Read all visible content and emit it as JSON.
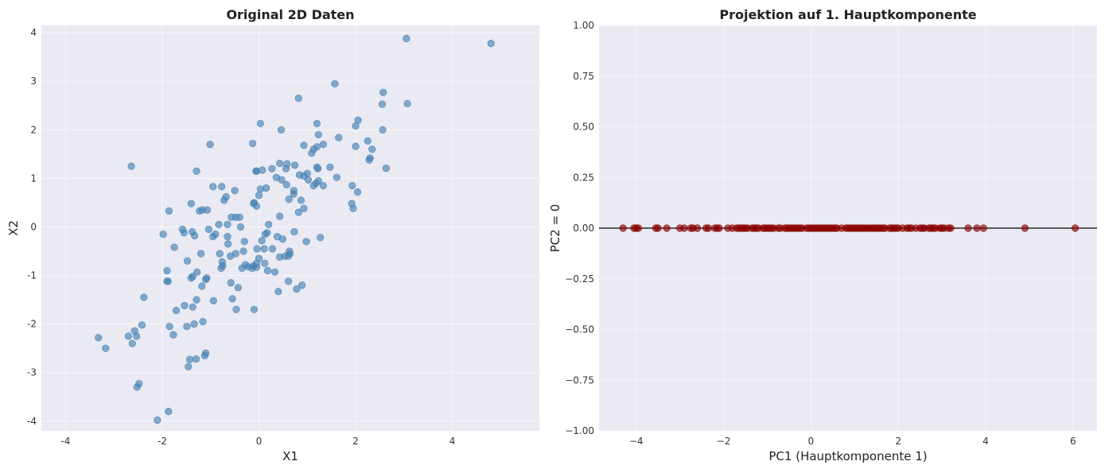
{
  "chart_data": [
    {
      "type": "scatter",
      "title": "Original 2D Daten",
      "xlabel": "X1",
      "ylabel": "X2",
      "xlim": [
        -4.5,
        5.8
      ],
      "ylim": [
        -4.2,
        4.15
      ],
      "xticks": [
        -4,
        -2,
        0,
        2,
        4
      ],
      "yticks": [
        -4,
        -3,
        -2,
        -1,
        0,
        1,
        2,
        3,
        4
      ],
      "grid": true,
      "marker_color": "#4682b4",
      "x": [
        3.05,
        4.8,
        1.57,
        2.57,
        3.07,
        0.82,
        2.55,
        2.05,
        2.0,
        0.03,
        1.2,
        2.56,
        0.46,
        1.23,
        1.65,
        -0.13,
        2.25,
        0.93,
        1.33,
        2.34,
        -1.01,
        1.2,
        1.13,
        -0.05,
        2.0,
        1.09,
        2.3,
        0.74,
        0.58,
        1.47,
        1.2,
        0.43,
        0.56,
        0.07,
        0.27,
        0.84,
        2.28,
        2.63,
        1.61,
        1.22,
        1.0,
        0.93,
        1.23,
        1.33,
        1.18,
        -1.29,
        -2.64,
        1.02,
        1.92,
        2.04,
        0.47,
        0.36,
        -0.06,
        0.57,
        0.03,
        1.13,
        1.95,
        -0.95,
        0.72,
        -0.72,
        -0.5,
        0.72,
        -1.4,
        -1.86,
        0.87,
        0.15,
        0.62,
        -0.77,
        0.0,
        -0.11,
        -1.23,
        0.93,
        -0.68,
        -0.48,
        1.93,
        -0.05,
        0.82,
        -1.17,
        -0.83,
        -0.57,
        0.43,
        -1.07,
        -0.4,
        -0.38,
        0.2,
        -1.98,
        -1.55,
        -0.95,
        -0.48,
        0.17,
        1.27,
        -1.58,
        -0.1,
        -0.65,
        0.06,
        0.98,
        0.73,
        0.38,
        0.13,
        0.0,
        -0.59,
        -0.32,
        0.11,
        0.49,
        0.61,
        -1.33,
        -1.04,
        -1.75,
        -0.04,
        0.28,
        -0.3,
        -0.81,
        -1.38,
        -1.2,
        -0.65,
        0.63,
        0.12,
        0.18,
        0.43,
        0.54,
        0.64,
        -0.64,
        -0.05,
        -1.48,
        -0.35,
        -0.28,
        -0.14,
        -0.11,
        -0.22,
        -1.28,
        -1.37,
        -1.4,
        -1.88,
        -1.08,
        0.33,
        -1.18,
        -1.9,
        -0.76,
        -0.05,
        -0.43,
        0.4,
        0.78,
        -0.58,
        0.89,
        0.61,
        -1.1,
        -0.94,
        -1.54,
        -1.71,
        -2.38,
        -0.47,
        -1.29,
        -0.1,
        -0.55,
        -1.37,
        -2.42,
        -2.57,
        -1.77,
        -1.34,
        -1.49,
        -1.16,
        -1.85,
        -1.1,
        -1.12,
        -1.3,
        -2.7,
        -3.32,
        -3.17,
        -2.53,
        -2.62,
        -1.43,
        -1.46,
        -2.48,
        -2.52,
        -1.87,
        -2.1,
        -1.9,
        -0.78,
        -0.75,
        -0.9
      ],
      "y": [
        3.88,
        3.78,
        2.95,
        2.77,
        2.54,
        2.65,
        2.53,
        2.2,
        2.08,
        2.13,
        2.13,
        2.0,
        2.0,
        1.9,
        1.84,
        1.72,
        1.77,
        1.68,
        1.7,
        1.6,
        1.7,
        1.65,
        1.6,
        1.15,
        1.66,
        1.52,
        1.42,
        1.27,
        1.3,
        1.23,
        1.23,
        1.31,
        1.2,
        1.17,
        1.2,
        1.07,
        1.38,
        1.21,
        1.02,
        1.2,
        1.1,
        1.05,
        0.95,
        0.85,
        0.9,
        1.15,
        1.25,
        0.97,
        0.48,
        0.72,
        0.97,
        1.02,
        1.15,
        0.87,
        0.78,
        0.85,
        0.38,
        0.83,
        0.75,
        0.55,
        0.75,
        0.68,
        0.48,
        0.33,
        0.55,
        0.8,
        0.57,
        0.83,
        0.65,
        0.48,
        0.33,
        0.38,
        0.62,
        0.2,
        0.85,
        0.43,
        0.3,
        0.35,
        0.05,
        0.2,
        0.22,
        0.35,
        0.2,
        0.0,
        0.05,
        -0.15,
        -0.12,
        -0.2,
        -0.55,
        -0.12,
        -0.22,
        -0.05,
        0.5,
        0.05,
        -0.28,
        -0.3,
        -0.1,
        -0.2,
        -0.15,
        -0.65,
        -0.6,
        -0.5,
        -0.45,
        -0.25,
        -0.6,
        -0.18,
        -0.05,
        -0.42,
        -0.45,
        -0.45,
        -0.3,
        -0.55,
        -0.1,
        -0.55,
        -0.2,
        -0.5,
        -0.75,
        -0.9,
        -0.62,
        -0.6,
        -0.55,
        -0.35,
        -0.75,
        -0.7,
        -0.85,
        -0.78,
        -0.85,
        -0.8,
        -0.82,
        -0.93,
        -1.02,
        -1.05,
        -1.12,
        -1.05,
        -0.93,
        -1.22,
        -0.9,
        -0.72,
        -0.83,
        -1.25,
        -1.33,
        -1.28,
        -1.15,
        -1.2,
        -1.12,
        -1.08,
        -1.52,
        -1.62,
        -1.72,
        -1.45,
        -1.7,
        -1.5,
        -1.7,
        -1.48,
        -1.65,
        -2.02,
        -2.14,
        -2.22,
        -2.0,
        -2.05,
        -1.95,
        -2.05,
        -2.6,
        -2.65,
        -2.72,
        -2.25,
        -2.28,
        -2.5,
        -2.25,
        -2.4,
        -2.73,
        -2.88,
        -3.23,
        -3.3,
        -3.8,
        -3.98,
        -1.12,
        -0.85,
        -0.8,
        -0.15
      ]
    },
    {
      "type": "scatter",
      "title": "Projektion auf 1. Hauptkomponente",
      "xlabel": "PC1 (Hauptkomponente 1)",
      "ylabel": "PC2 = 0",
      "xlim": [
        -4.85,
        6.55
      ],
      "ylim": [
        -1.0,
        1.0
      ],
      "xticks": [
        -4,
        -2,
        0,
        2,
        4,
        6
      ],
      "yticks": [
        -1.0,
        -0.75,
        -0.5,
        -0.25,
        0.0,
        0.25,
        0.5,
        0.75,
        1.0
      ],
      "ytick_labels": [
        "−1.00",
        "−0.75",
        "−0.50",
        "−0.25",
        "0.00",
        "0.25",
        "0.50",
        "0.75",
        "1.00"
      ],
      "xtick_labels": [
        "−4",
        "−2",
        "0",
        "2",
        "4",
        "6"
      ],
      "grid": true,
      "hline_y": 0,
      "marker_color": "#8b0000",
      "x": [
        -4.3,
        -4.05,
        -4.0,
        -3.95,
        -3.55,
        -3.5,
        -3.3,
        -3.0,
        -2.9,
        -2.75,
        -2.7,
        -2.6,
        -2.4,
        -2.35,
        -2.2,
        -2.15,
        -2.1,
        -1.9,
        -1.8,
        -1.7,
        -1.65,
        -1.6,
        -1.55,
        -1.5,
        -1.45,
        -1.35,
        -1.3,
        -1.25,
        -1.2,
        -1.1,
        -1.05,
        -1.0,
        -0.95,
        -0.9,
        -0.85,
        -0.75,
        -0.7,
        -0.6,
        -0.55,
        -0.5,
        -0.45,
        -0.4,
        -0.35,
        -0.3,
        -0.25,
        -0.2,
        -0.1,
        -0.05,
        0.0,
        0.05,
        0.1,
        0.15,
        0.2,
        0.25,
        0.3,
        0.35,
        0.4,
        0.45,
        0.5,
        0.55,
        0.6,
        0.7,
        0.8,
        0.85,
        0.9,
        0.95,
        1.0,
        1.05,
        1.1,
        1.15,
        1.2,
        1.25,
        1.3,
        1.35,
        1.4,
        1.45,
        1.5,
        1.55,
        1.6,
        1.65,
        1.7,
        1.8,
        1.85,
        1.9,
        1.95,
        2.0,
        2.1,
        2.2,
        2.25,
        2.3,
        2.4,
        2.5,
        2.55,
        2.6,
        2.7,
        2.75,
        2.8,
        2.85,
        2.95,
        3.0,
        3.05,
        3.15,
        3.2,
        3.6,
        3.8,
        3.95,
        4.9,
        6.05
      ],
      "y_constant": 0
    }
  ]
}
